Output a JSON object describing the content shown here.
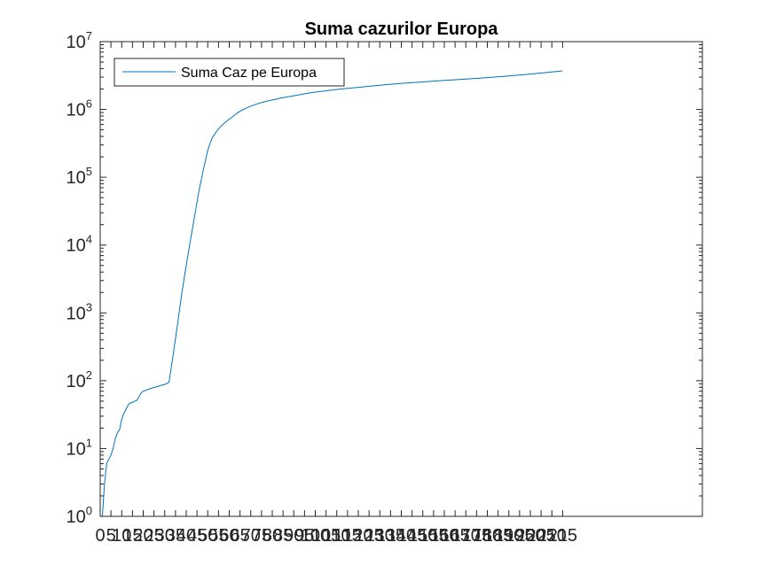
{
  "chart_data": {
    "type": "line",
    "title": "Suma cazurilor Europa",
    "xlabel": "",
    "ylabel": "",
    "yscale": "log",
    "ylim": [
      1,
      10000000
    ],
    "xlim": [
      0,
      280
    ],
    "xticks": [
      0,
      5,
      10,
      15,
      20,
      25,
      30,
      35,
      40,
      45,
      50,
      55,
      60,
      65,
      70,
      75,
      80,
      85,
      90,
      95,
      100,
      105,
      110,
      115,
      120,
      125,
      130,
      135,
      140,
      145,
      150,
      155,
      160,
      165,
      170,
      175,
      180,
      185,
      190,
      195,
      200,
      205,
      210,
      215
    ],
    "ytick_labels": [
      {
        "value": 1,
        "base": "10",
        "exp": "0"
      },
      {
        "value": 10,
        "base": "10",
        "exp": "1"
      },
      {
        "value": 100,
        "base": "10",
        "exp": "2"
      },
      {
        "value": 1000,
        "base": "10",
        "exp": "3"
      },
      {
        "value": 10000,
        "base": "10",
        "exp": "4"
      },
      {
        "value": 100000,
        "base": "10",
        "exp": "5"
      },
      {
        "value": 1000000,
        "base": "10",
        "exp": "6"
      },
      {
        "value": 10000000,
        "base": "10",
        "exp": "7"
      }
    ],
    "grid": false,
    "legend": {
      "placement": "top-left",
      "entries": [
        "Suma Caz pe Europa"
      ]
    },
    "colors": {
      "series": "#0072bd",
      "axis": "#262626"
    },
    "series": [
      {
        "name": "Suma Caz pe Europa",
        "x": [
          0,
          1,
          2,
          3,
          4,
          5,
          6,
          7,
          8,
          9,
          10,
          11,
          12,
          13,
          14,
          15,
          16,
          17,
          18,
          19,
          20,
          22,
          24,
          26,
          28,
          30,
          32,
          34,
          36,
          38,
          40,
          42,
          44,
          46,
          48,
          50,
          52,
          54,
          56,
          58,
          60,
          62,
          64,
          66,
          68,
          70,
          72,
          74,
          76,
          78,
          80,
          82,
          84,
          86,
          88,
          90,
          95,
          100,
          110,
          120,
          130,
          140,
          150,
          160,
          170,
          180,
          190,
          200,
          210,
          215
        ],
        "y": [
          1,
          1,
          3,
          6,
          7,
          8,
          10,
          14,
          17,
          19,
          27,
          33,
          38,
          44,
          47,
          48,
          50,
          51,
          58,
          66,
          70,
          74,
          78,
          81,
          85,
          88,
          95,
          250,
          700,
          2000,
          5000,
          12000,
          28000,
          65000,
          130000,
          250000,
          380000,
          470000,
          560000,
          640000,
          720000,
          800000,
          900000,
          980000,
          1050000,
          1120000,
          1180000,
          1240000,
          1290000,
          1340000,
          1380000,
          1420000,
          1470000,
          1510000,
          1550000,
          1590000,
          1700000,
          1800000,
          1970000,
          2120000,
          2270000,
          2420000,
          2550000,
          2680000,
          2810000,
          2950000,
          3120000,
          3320000,
          3570000,
          3700000
        ]
      }
    ]
  }
}
